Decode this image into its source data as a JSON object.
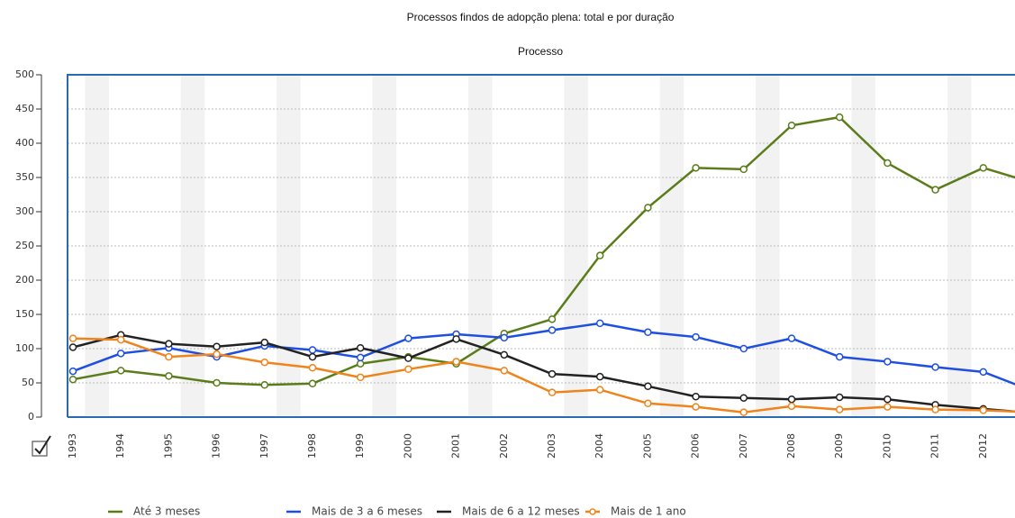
{
  "chart_data": {
    "type": "line",
    "title": "Processos findos de adopção plena: total e por duração",
    "subtitle": "Processo",
    "categories": [
      "1993",
      "1994",
      "1995",
      "1996",
      "1997",
      "1998",
      "1999",
      "2000",
      "2001",
      "2002",
      "2003",
      "2004",
      "2005",
      "2006",
      "2007",
      "2008",
      "2009",
      "2010",
      "2011",
      "2012",
      null
    ],
    "series": [
      {
        "name": "Até 3 meses",
        "color": "#5a7d1a",
        "values": [
          55,
          68,
          60,
          50,
          47,
          49,
          78,
          88,
          78,
          122,
          143,
          236,
          306,
          364,
          362,
          426,
          438,
          371,
          332,
          364,
          343
        ]
      },
      {
        "name": "Mais de 3 a 6 meses",
        "color": "#1f4fe0",
        "values": [
          67,
          93,
          101,
          88,
          104,
          98,
          87,
          115,
          121,
          116,
          127,
          137,
          124,
          117,
          100,
          115,
          88,
          81,
          73,
          66,
          39
        ]
      },
      {
        "name": "Mais de 6 a 12 meses",
        "color": "#222222",
        "values": [
          102,
          120,
          107,
          103,
          109,
          88,
          101,
          86,
          114,
          91,
          63,
          59,
          45,
          30,
          28,
          26,
          29,
          26,
          18,
          12,
          6
        ]
      },
      {
        "name": "Mais de 1 ano",
        "color": "#f0841c",
        "values": [
          115,
          113,
          88,
          92,
          80,
          72,
          58,
          70,
          81,
          68,
          36,
          40,
          20,
          15,
          7,
          16,
          11,
          15,
          11,
          10,
          7
        ]
      }
    ],
    "ylim": [
      0,
      500
    ],
    "yticks": [
      0,
      50,
      100,
      150,
      200,
      250,
      300,
      350,
      400,
      450,
      500
    ],
    "grid": true
  }
}
